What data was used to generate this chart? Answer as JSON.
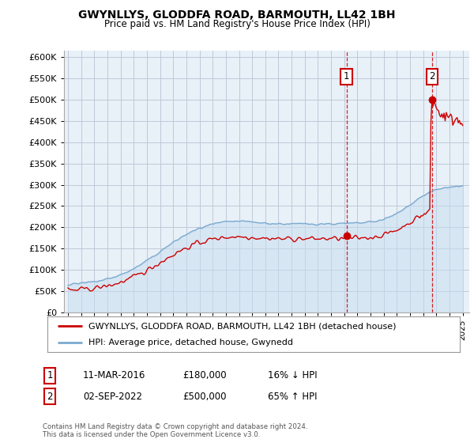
{
  "title": "GWYNLLYS, GLODDFA ROAD, BARMOUTH, LL42 1BH",
  "subtitle": "Price paid vs. HM Land Registry's House Price Index (HPI)",
  "legend_line1": "GWYNLLYS, GLODDFA ROAD, BARMOUTH, LL42 1BH (detached house)",
  "legend_line2": "HPI: Average price, detached house, Gwynedd",
  "sale1_date": "11-MAR-2016",
  "sale1_price": "£180,000",
  "sale1_hpi": "16% ↓ HPI",
  "sale1_year": 2016.17,
  "sale1_value": 180000,
  "sale2_date": "02-SEP-2022",
  "sale2_price": "£500,000",
  "sale2_hpi": "65% ↑ HPI",
  "sale2_year": 2022.67,
  "sale2_value": 500000,
  "ylabel_ticks": [
    "£0",
    "£50K",
    "£100K",
    "£150K",
    "£200K",
    "£250K",
    "£300K",
    "£350K",
    "£400K",
    "£450K",
    "£500K",
    "£550K",
    "£600K"
  ],
  "ytick_values": [
    0,
    50000,
    100000,
    150000,
    200000,
    250000,
    300000,
    350000,
    400000,
    450000,
    500000,
    550000,
    600000
  ],
  "ylim": [
    0,
    615000
  ],
  "xlim_start": 1994.7,
  "xlim_end": 2025.5,
  "footnote": "Contains HM Land Registry data © Crown copyright and database right 2024.\nThis data is licensed under the Open Government Licence v3.0.",
  "background_color": "#ffffff",
  "chart_bg_color": "#e8f0f8",
  "grid_color": "#c0c8d8",
  "hpi_line_color": "#7aaad0",
  "price_line_color": "#cc0000",
  "sale_marker_color": "#cc0000",
  "dashed_line_color": "#cc0000",
  "fill_color": "#c8ddf0"
}
